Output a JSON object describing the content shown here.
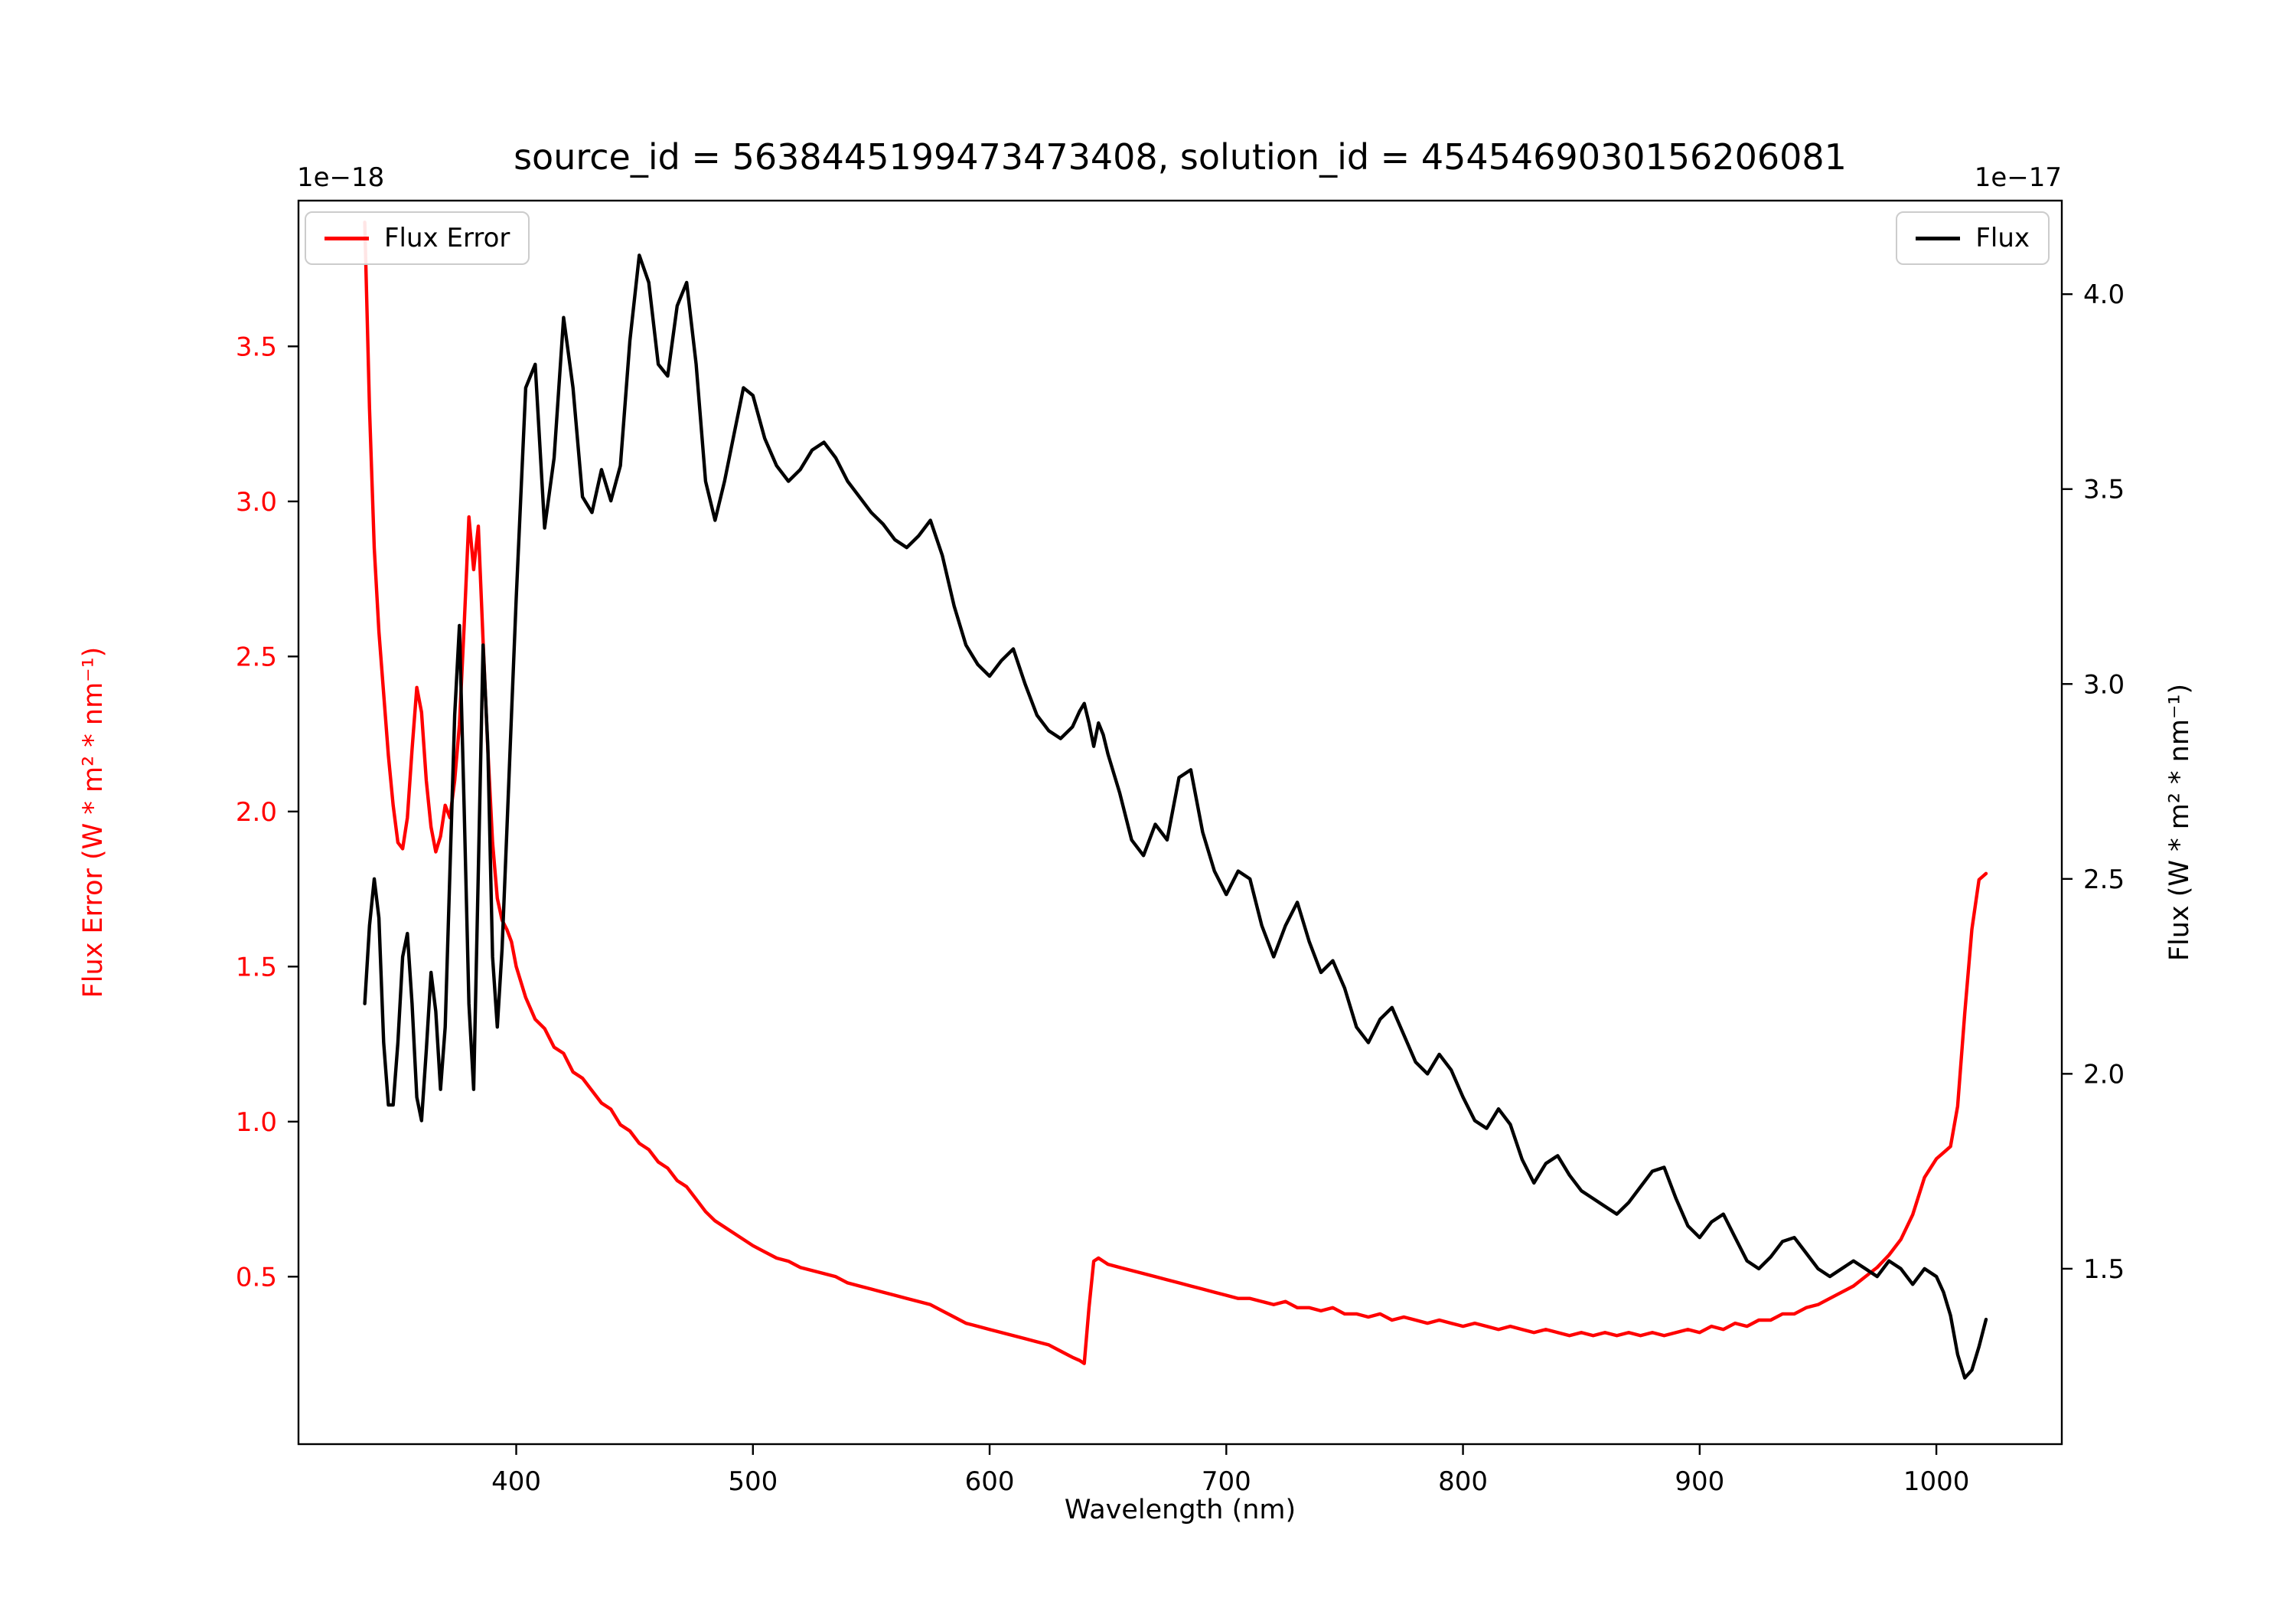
{
  "chart_data": {
    "type": "line",
    "title": "source_id = 5638445199473473408, solution_id = 4545469030156206081",
    "xlabel": "Wavelength (nm)",
    "grid": false,
    "axes": {
      "x": {
        "lim": [
          308,
          1053
        ],
        "ticks": [
          400,
          500,
          600,
          700,
          800,
          900,
          1000
        ],
        "tick_labels": [
          "400",
          "500",
          "600",
          "700",
          "800",
          "900",
          "1000"
        ]
      },
      "left": {
        "label": "Flux Error (W * m² * nm⁻¹)",
        "offset_text": "1e−18",
        "color": "#ff0000",
        "lim": [
          -0.04,
          3.97
        ],
        "ticks": [
          0.5,
          1.0,
          1.5,
          2.0,
          2.5,
          3.0,
          3.5
        ],
        "tick_labels": [
          "0.5",
          "1.0",
          "1.5",
          "2.0",
          "2.5",
          "3.0",
          "3.5"
        ]
      },
      "right": {
        "label": "Flux (W * m² * nm⁻¹)",
        "offset_text": "1e−17",
        "color": "#000000",
        "lim": [
          1.05,
          4.24
        ],
        "ticks": [
          1.5,
          2.0,
          2.5,
          3.0,
          3.5,
          4.0
        ],
        "tick_labels": [
          "1.5",
          "2.0",
          "2.5",
          "3.0",
          "3.5",
          "4.0"
        ]
      }
    },
    "legends": [
      {
        "label": "Flux Error",
        "position": "upper left",
        "color": "#ff0000"
      },
      {
        "label": "Flux",
        "position": "upper right",
        "color": "#000000"
      }
    ],
    "x": [
      336,
      338,
      340,
      342,
      344,
      346,
      348,
      350,
      352,
      354,
      356,
      358,
      360,
      362,
      364,
      366,
      368,
      370,
      372,
      374,
      376,
      378,
      380,
      382,
      384,
      386,
      388,
      390,
      392,
      394,
      396,
      398,
      400,
      404,
      408,
      412,
      416,
      420,
      424,
      428,
      432,
      436,
      440,
      444,
      448,
      452,
      456,
      460,
      464,
      468,
      472,
      476,
      480,
      484,
      488,
      492,
      496,
      500,
      505,
      510,
      515,
      520,
      525,
      530,
      535,
      540,
      545,
      550,
      555,
      560,
      565,
      570,
      575,
      580,
      585,
      590,
      595,
      600,
      605,
      610,
      615,
      620,
      625,
      630,
      635,
      638,
      640,
      642,
      644,
      646,
      648,
      650,
      655,
      660,
      665,
      670,
      675,
      680,
      685,
      690,
      695,
      700,
      705,
      710,
      715,
      720,
      725,
      730,
      735,
      740,
      745,
      750,
      755,
      760,
      765,
      770,
      775,
      780,
      785,
      790,
      795,
      800,
      805,
      810,
      815,
      820,
      825,
      830,
      835,
      840,
      845,
      850,
      855,
      860,
      865,
      870,
      875,
      880,
      885,
      890,
      895,
      900,
      905,
      910,
      915,
      920,
      925,
      930,
      935,
      940,
      945,
      950,
      955,
      960,
      965,
      970,
      975,
      980,
      985,
      990,
      995,
      1000,
      1003,
      1006,
      1009,
      1012,
      1015,
      1018,
      1021
    ],
    "series": [
      {
        "name": "Flux Error",
        "axis": "left",
        "color": "#ff0000",
        "unit_scale": "1e−18",
        "values": [
          3.9,
          3.3,
          2.85,
          2.58,
          2.38,
          2.18,
          2.02,
          1.9,
          1.88,
          1.98,
          2.2,
          2.4,
          2.32,
          2.1,
          1.95,
          1.87,
          1.92,
          2.02,
          1.98,
          2.1,
          2.28,
          2.6,
          2.95,
          2.78,
          2.92,
          2.55,
          2.2,
          1.9,
          1.72,
          1.65,
          1.62,
          1.58,
          1.5,
          1.4,
          1.33,
          1.3,
          1.24,
          1.22,
          1.16,
          1.14,
          1.1,
          1.06,
          1.04,
          0.99,
          0.97,
          0.93,
          0.91,
          0.87,
          0.85,
          0.81,
          0.79,
          0.75,
          0.71,
          0.68,
          0.66,
          0.64,
          0.62,
          0.6,
          0.58,
          0.56,
          0.55,
          0.53,
          0.52,
          0.51,
          0.5,
          0.48,
          0.47,
          0.46,
          0.45,
          0.44,
          0.43,
          0.42,
          0.41,
          0.39,
          0.37,
          0.35,
          0.34,
          0.33,
          0.32,
          0.31,
          0.3,
          0.29,
          0.28,
          0.26,
          0.24,
          0.23,
          0.22,
          0.4,
          0.55,
          0.56,
          0.55,
          0.54,
          0.53,
          0.52,
          0.51,
          0.5,
          0.49,
          0.48,
          0.47,
          0.46,
          0.45,
          0.44,
          0.43,
          0.43,
          0.42,
          0.41,
          0.42,
          0.4,
          0.4,
          0.39,
          0.4,
          0.38,
          0.38,
          0.37,
          0.38,
          0.36,
          0.37,
          0.36,
          0.35,
          0.36,
          0.35,
          0.34,
          0.35,
          0.34,
          0.33,
          0.34,
          0.33,
          0.32,
          0.33,
          0.32,
          0.31,
          0.32,
          0.31,
          0.32,
          0.31,
          0.32,
          0.31,
          0.32,
          0.31,
          0.32,
          0.33,
          0.32,
          0.34,
          0.33,
          0.35,
          0.34,
          0.36,
          0.36,
          0.38,
          0.38,
          0.4,
          0.41,
          0.43,
          0.45,
          0.47,
          0.5,
          0.53,
          0.57,
          0.62,
          0.7,
          0.82,
          0.88,
          0.9,
          0.92,
          1.05,
          1.35,
          1.62,
          1.78,
          1.8
        ]
      },
      {
        "name": "Flux",
        "axis": "right",
        "color": "#000000",
        "unit_scale": "1e−17",
        "values": [
          2.18,
          2.38,
          2.5,
          2.4,
          2.08,
          1.92,
          1.92,
          2.08,
          2.3,
          2.36,
          2.18,
          1.94,
          1.88,
          2.06,
          2.26,
          2.16,
          1.96,
          2.12,
          2.52,
          2.92,
          3.15,
          2.68,
          2.18,
          1.96,
          2.52,
          3.1,
          2.84,
          2.3,
          2.12,
          2.32,
          2.62,
          2.92,
          3.22,
          3.76,
          3.82,
          3.4,
          3.58,
          3.94,
          3.76,
          3.48,
          3.44,
          3.55,
          3.47,
          3.56,
          3.88,
          4.1,
          4.03,
          3.82,
          3.79,
          3.97,
          4.03,
          3.82,
          3.52,
          3.42,
          3.52,
          3.64,
          3.76,
          3.74,
          3.63,
          3.56,
          3.52,
          3.55,
          3.6,
          3.62,
          3.58,
          3.52,
          3.48,
          3.44,
          3.41,
          3.37,
          3.35,
          3.38,
          3.42,
          3.33,
          3.2,
          3.1,
          3.05,
          3.02,
          3.06,
          3.09,
          3.0,
          2.92,
          2.88,
          2.86,
          2.89,
          2.93,
          2.95,
          2.9,
          2.84,
          2.9,
          2.87,
          2.82,
          2.72,
          2.6,
          2.56,
          2.64,
          2.6,
          2.76,
          2.78,
          2.62,
          2.52,
          2.46,
          2.52,
          2.5,
          2.38,
          2.3,
          2.38,
          2.44,
          2.34,
          2.26,
          2.29,
          2.22,
          2.12,
          2.08,
          2.14,
          2.17,
          2.1,
          2.03,
          2.0,
          2.05,
          2.01,
          1.94,
          1.88,
          1.86,
          1.91,
          1.87,
          1.78,
          1.72,
          1.77,
          1.79,
          1.74,
          1.7,
          1.68,
          1.66,
          1.64,
          1.67,
          1.71,
          1.75,
          1.76,
          1.68,
          1.61,
          1.58,
          1.62,
          1.64,
          1.58,
          1.52,
          1.5,
          1.53,
          1.57,
          1.58,
          1.54,
          1.5,
          1.48,
          1.5,
          1.52,
          1.5,
          1.48,
          1.52,
          1.5,
          1.46,
          1.5,
          1.48,
          1.44,
          1.38,
          1.28,
          1.22,
          1.24,
          1.3,
          1.37
        ]
      }
    ]
  }
}
